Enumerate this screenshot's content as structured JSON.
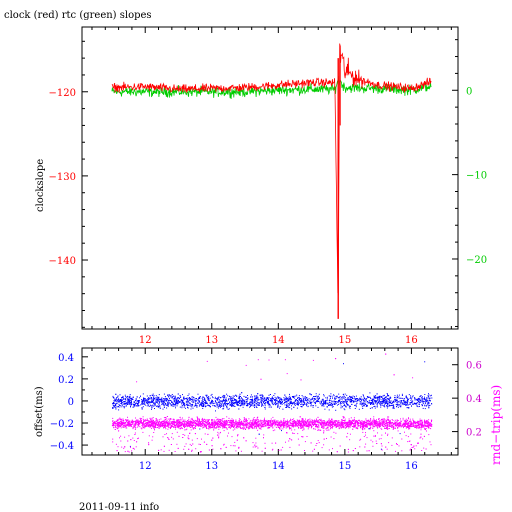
{
  "chart_data": [
    {
      "type": "line",
      "title": "clock (red) rtc (green) slopes",
      "ylabel_left": "clockslope",
      "x_ticks": [
        "12",
        "13",
        "14",
        "15",
        "16"
      ],
      "x_range": [
        11.05,
        16.7
      ],
      "y_left_ticks": [
        "−120",
        "−130",
        "−140"
      ],
      "y_left_range": [
        -148.2,
        -112.3
      ],
      "y_right_ticks": [
        "0",
        "−10",
        "−20"
      ],
      "y_right_range": [
        -28.3,
        7.5
      ],
      "colors": {
        "clock": "#ff0000",
        "rtc": "#00cc00",
        "left_axis": "#ff0000",
        "right_axis": "#00cc00",
        "x_axis": "#ff0000"
      },
      "series": [
        {
          "color": "#00cc00",
          "x": [
            11.5,
            12.0,
            12.5,
            13.0,
            13.5,
            14.0,
            14.5,
            14.85,
            14.9,
            15.0,
            15.5,
            16.0,
            16.3
          ],
          "y": [
            -120.0,
            -120.0,
            -120.0,
            -120.0,
            -120.0,
            -119.8,
            -119.7,
            -119.7,
            -118.5,
            -119.5,
            -119.6,
            -119.8,
            -119.3
          ]
        },
        {
          "color": "#ff0000",
          "x": [
            11.5,
            12.0,
            12.5,
            13.0,
            13.5,
            14.0,
            14.5,
            14.85,
            14.9,
            14.92,
            15.0,
            15.2,
            15.5,
            16.0,
            16.3
          ],
          "y": [
            -119.5,
            -119.4,
            -119.7,
            -119.6,
            -119.5,
            -119.2,
            -118.9,
            -118.9,
            -147.0,
            -115.0,
            -117.5,
            -118.5,
            -119.2,
            -119.6,
            -118.8
          ]
        }
      ]
    },
    {
      "type": "scatter",
      "ylabel_left": "offset(ms)",
      "ylabel_right": "rnd−trip(ms)",
      "x_ticks": [
        "12",
        "13",
        "14",
        "15",
        "16"
      ],
      "x_range": [
        11.05,
        16.7
      ],
      "y_left_ticks": [
        "0.4",
        "0.2",
        "0",
        "−0.2",
        "−0.4"
      ],
      "y_left_range": [
        -0.49,
        0.48
      ],
      "y_right_ticks": [
        "0.6",
        "0.4",
        "0.2"
      ],
      "y_right_range": [
        0.06,
        0.7
      ],
      "colors": {
        "offset": "#0000ff",
        "roundtrip": "#ff00ff",
        "left_axis": "#0000ff",
        "right_axis": "#cc00cc",
        "x_axis": "#0000ff"
      },
      "offset_band": {
        "x_start": 11.5,
        "x_end": 16.3,
        "center": 0.0,
        "spread": 0.09
      },
      "roundtrip_band": {
        "x_start": 11.5,
        "x_end": 16.3,
        "center": 0.25,
        "spread": 0.05
      }
    }
  ],
  "footer": "2011-09-11 info"
}
